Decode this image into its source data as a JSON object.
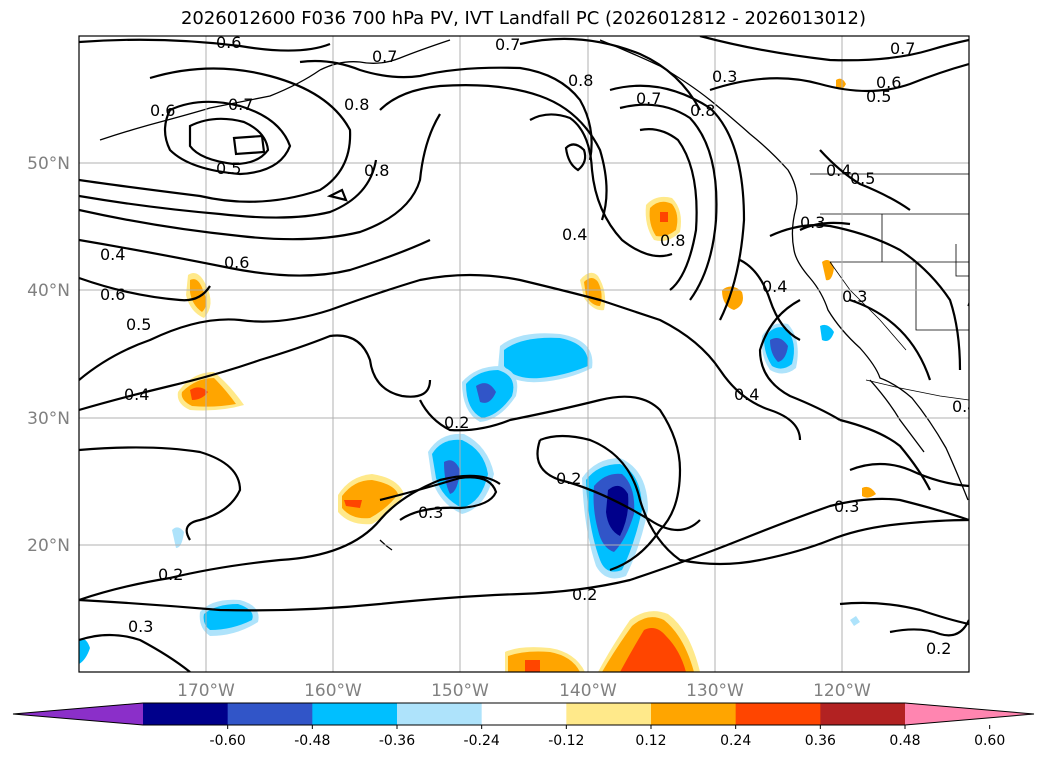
{
  "title": "2026012600 F036 700 hPa PV, IVT Landfall PC (2026012812 - 2026013012)",
  "map": {
    "lat_labels": [
      "50°N",
      "40°N",
      "30°N",
      "20°N"
    ],
    "lon_labels": [
      "170°W",
      "160°W",
      "150°W",
      "140°W",
      "130°W",
      "120°W"
    ],
    "contour_labels": [
      "0.6",
      "0.7",
      "0.8",
      "0.7",
      "0.7",
      "0.6",
      "0.5",
      "0.3",
      "0.6",
      "0.7",
      "0.8",
      "0.8",
      "0.5",
      "0.8",
      "0.7",
      "0.8",
      "0.4",
      "0.5",
      "0.4",
      "0.6",
      "0.6",
      "0.5",
      "0.4",
      "0.3",
      "0.4",
      "0.3",
      "0.2",
      "0.3",
      "0.2",
      "0.4",
      "0.4",
      "0.3",
      "0.2",
      "0.2",
      "0.3",
      "0.2",
      "0.4"
    ]
  },
  "colorbar": {
    "tick_labels": [
      "-0.60",
      "-0.48",
      "-0.36",
      "-0.24",
      "-0.12",
      "0.12",
      "0.24",
      "0.36",
      "0.48",
      "0.60"
    ],
    "colors": [
      "#8b2fc9",
      "#00008b",
      "#3155c8",
      "#00bfff",
      "#aee3fb",
      "#ffffff",
      "#ffe98a",
      "#ffa500",
      "#ff4500",
      "#b22222",
      "#ff85b0"
    ]
  }
}
